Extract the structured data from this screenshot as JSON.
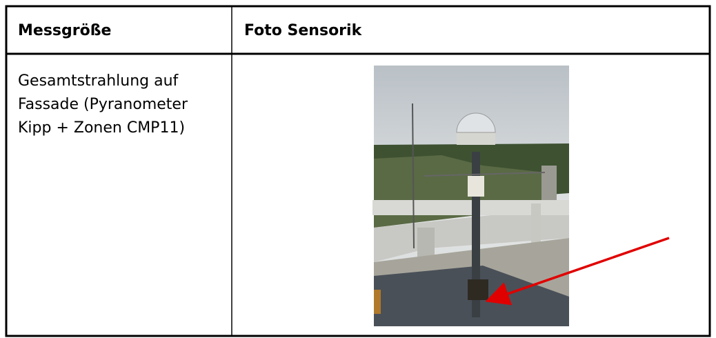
{
  "table": {
    "header": [
      "Messgröße",
      "Foto Sensorik"
    ],
    "rows": [
      [
        [
          "Gesamtstrahlung auf",
          "Fassade (Pyranometer",
          "Kipp + Zonen CMP11)"
        ]
      ]
    ]
  }
}
